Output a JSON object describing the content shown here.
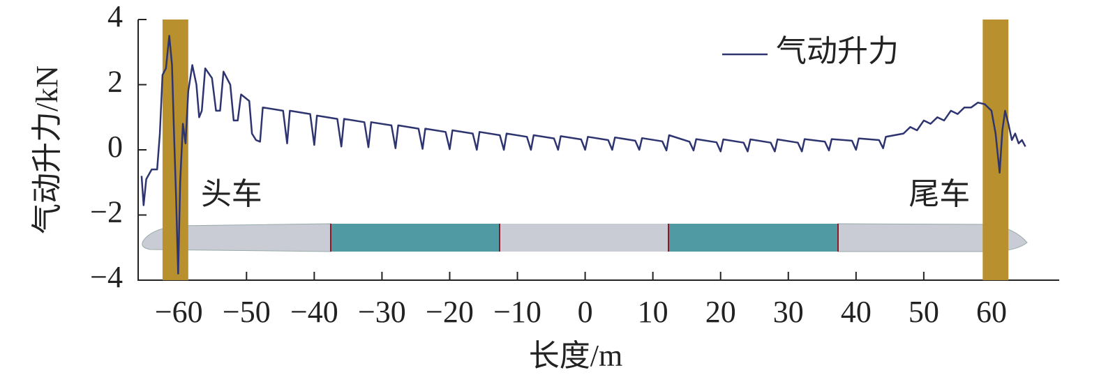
{
  "chart_data": {
    "type": "line",
    "x_label": "长度/m",
    "y_label": "气动升力/kN",
    "xlim": [
      -66,
      70
    ],
    "ylim": [
      -4,
      4
    ],
    "xticks": [
      {
        "value": -60,
        "label": "−60"
      },
      {
        "value": -50,
        "label": "−50"
      },
      {
        "value": -40,
        "label": "−40"
      },
      {
        "value": -30,
        "label": "−30"
      },
      {
        "value": -20,
        "label": "−20"
      },
      {
        "value": -10,
        "label": "−10"
      },
      0,
      10,
      20,
      30,
      40,
      50,
      60
    ],
    "yticks": [
      {
        "value": -4,
        "label": "−4"
      },
      {
        "value": -2,
        "label": "−2"
      },
      0,
      2,
      4
    ],
    "legend": "upper right",
    "bands": [
      {
        "label": "头车",
        "x": [
          -62.4,
          -58.6
        ],
        "color": "#b8902e"
      },
      {
        "label": "尾车",
        "x": [
          58.7,
          62.5
        ],
        "color": "#b8902e"
      }
    ],
    "series": [
      {
        "name": "气动升力",
        "color": "#2e3470",
        "x": [
          -65.5,
          -65.2,
          -64.8,
          -64,
          -63.2,
          -62.8,
          -62.4,
          -61.9,
          -61.4,
          -61.0,
          -60.7,
          -60.4,
          -60.1,
          -59.8,
          -59.4,
          -59.0,
          -58.6,
          -58.0,
          -57.4,
          -57.0,
          -56.6,
          -56.1,
          -55.1,
          -54.5,
          -53.9,
          -53.4,
          -52.4,
          -51.9,
          -51.3,
          -50.8,
          -49.6,
          -49.2,
          -48.6,
          -48,
          -47.6,
          -44.6,
          -44,
          -43.6,
          -40.6,
          -40,
          -39.6,
          -36.6,
          -36,
          -35.6,
          -32.6,
          -32,
          -31.6,
          -28.6,
          -28,
          -27.6,
          -24.6,
          -24,
          -23.6,
          -20.6,
          -20,
          -19.6,
          -16.6,
          -16,
          -15.6,
          -12.6,
          -12,
          -11.6,
          -8.6,
          -8,
          -7.6,
          -4.6,
          -4,
          -3.6,
          -0.6,
          0,
          0.4,
          3.4,
          4,
          4.4,
          7.4,
          8,
          8.4,
          11.4,
          12,
          12.4,
          15.4,
          16,
          16.4,
          19.4,
          20,
          20.4,
          23.4,
          24,
          24.4,
          27.4,
          28,
          28.4,
          31.4,
          32,
          32.4,
          35.4,
          36,
          36.4,
          39.4,
          40,
          40.4,
          43.4,
          44,
          44.4,
          47,
          48,
          49,
          50,
          51,
          52,
          53,
          54,
          55,
          56,
          57,
          58,
          59,
          60,
          60.6,
          61.2,
          61.6,
          62,
          62.5,
          63,
          63.5,
          64,
          64.5,
          65
        ],
        "values": [
          -0.8,
          -1.7,
          -0.9,
          -0.6,
          -0.6,
          0.5,
          2.3,
          2.5,
          3.5,
          2.6,
          0.5,
          -1.5,
          -3.8,
          -1.0,
          0.8,
          0.2,
          1.8,
          2.6,
          2.0,
          1.0,
          1.2,
          2.5,
          2.2,
          1.2,
          1.2,
          2.4,
          2.0,
          0.9,
          0.9,
          1.7,
          1.5,
          0.5,
          0.3,
          0.25,
          1.3,
          1.2,
          0.2,
          1.2,
          1.1,
          0.15,
          1.05,
          0.95,
          0.1,
          0.95,
          0.85,
          0.08,
          0.85,
          0.75,
          0.05,
          0.75,
          0.65,
          0.03,
          0.65,
          0.55,
          0.02,
          0.6,
          0.5,
          0,
          0.55,
          0.45,
          0,
          0.5,
          0.4,
          0,
          0.45,
          0.35,
          0,
          0.42,
          0.32,
          0,
          0.4,
          0.3,
          0,
          0.38,
          0.28,
          0,
          0.36,
          0.26,
          -0.02,
          0.45,
          0.25,
          -0.02,
          0.33,
          0.23,
          -0.05,
          0.32,
          0.22,
          -0.05,
          0.32,
          0.22,
          -0.05,
          0.32,
          0.22,
          -0.05,
          0.33,
          0.25,
          -0.02,
          0.33,
          0.28,
          0,
          0.35,
          0.3,
          0.05,
          0.4,
          0.5,
          0.7,
          0.6,
          0.9,
          0.8,
          1.0,
          0.9,
          1.2,
          1.1,
          1.3,
          1.3,
          1.45,
          1.4,
          1.2,
          0.5,
          -0.7,
          0.6,
          1.2,
          0.8,
          0.3,
          0.5,
          0.2,
          0.3,
          0.1
        ]
      }
    ]
  }
}
